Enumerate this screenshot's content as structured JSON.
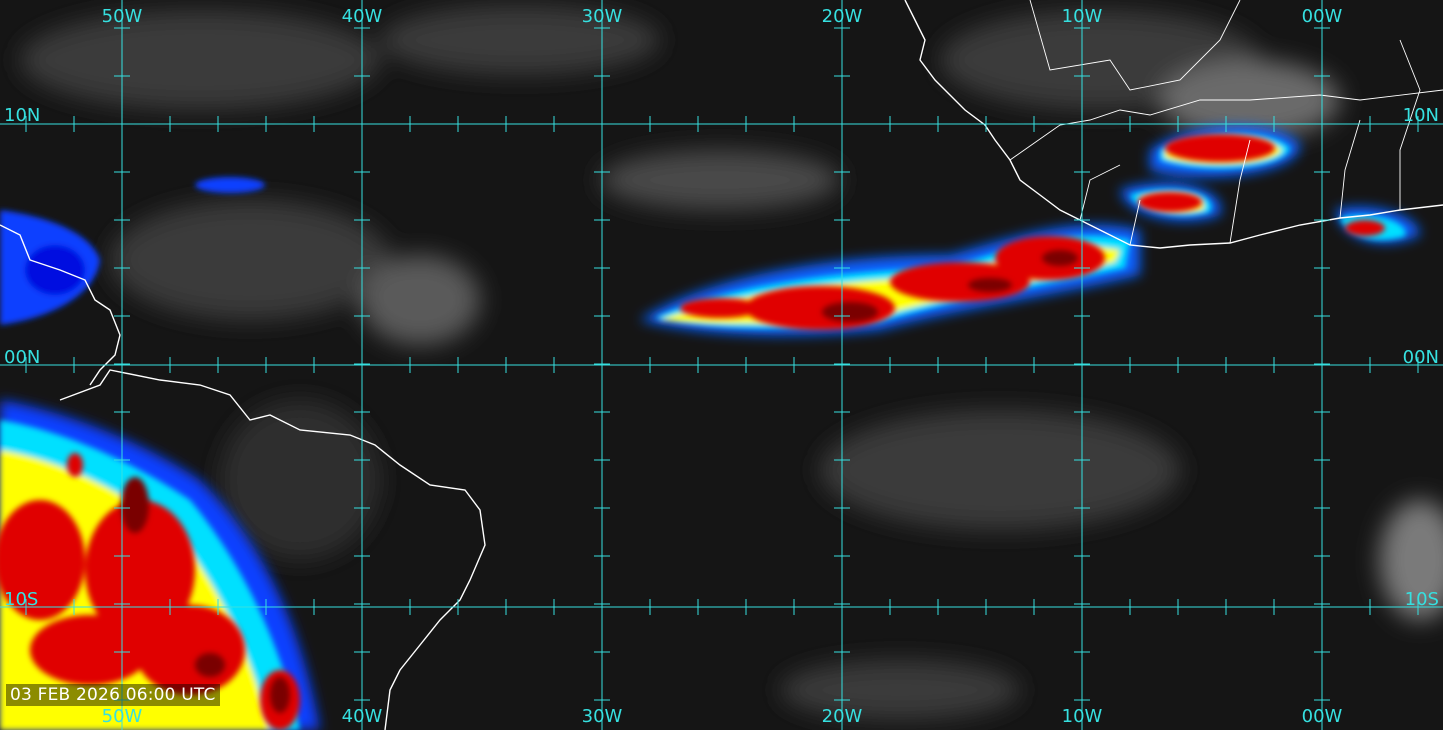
{
  "map": {
    "longitude_labels_top": [
      "50W",
      "40W",
      "30W",
      "20W",
      "10W",
      "00W"
    ],
    "longitude_labels_bottom": [
      "50W",
      "40W",
      "30W",
      "20W",
      "10W",
      "00W"
    ],
    "latitude_labels_left": [
      "10N",
      "00N",
      "10S"
    ],
    "latitude_labels_right": [
      "10N",
      "00N",
      "10S"
    ],
    "timestamp": "03 FEB 2026 06:00 UTC",
    "colors": {
      "grid": "#36e0e0",
      "coast": "#ffffff",
      "ocean_background": "#141414",
      "cloud_cold": "#0000ff",
      "cloud_cyan": "#00e0ff",
      "cloud_yellow": "#ffff00",
      "cloud_red": "#e00000",
      "cloud_darkred": "#7a0000"
    }
  }
}
